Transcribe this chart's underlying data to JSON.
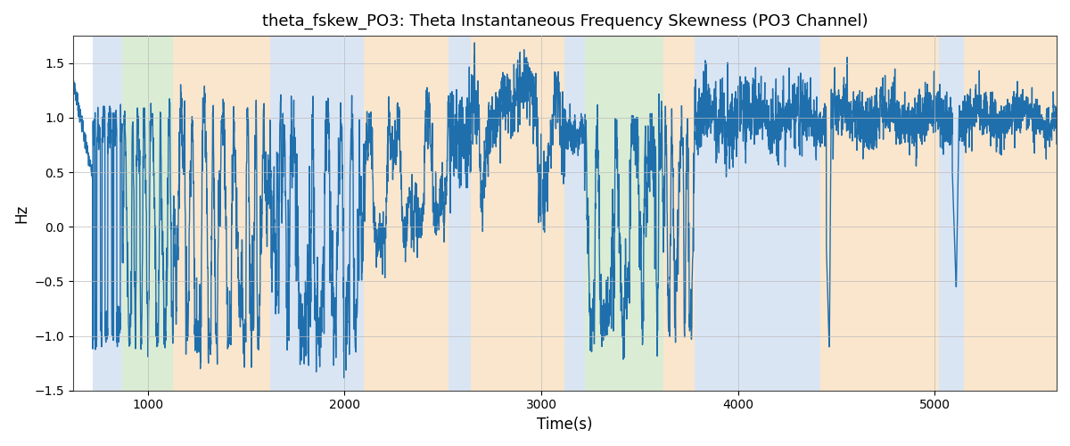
{
  "title": "theta_fskew_PO3: Theta Instantaneous Frequency Skewness (PO3 Channel)",
  "xlabel": "Time(s)",
  "ylabel": "Hz",
  "xlim": [
    620,
    5620
  ],
  "ylim": [
    -1.5,
    1.75
  ],
  "yticks": [
    -1.5,
    -1.0,
    -0.5,
    0.0,
    0.5,
    1.0,
    1.5
  ],
  "xticks": [
    1000,
    2000,
    3000,
    4000,
    5000
  ],
  "bg_bands": [
    {
      "xmin": 720,
      "xmax": 870,
      "color": "#adc6e8",
      "alpha": 0.45
    },
    {
      "xmin": 870,
      "xmax": 1130,
      "color": "#aed5a0",
      "alpha": 0.45
    },
    {
      "xmin": 1130,
      "xmax": 1620,
      "color": "#f5c990",
      "alpha": 0.45
    },
    {
      "xmin": 1620,
      "xmax": 1820,
      "color": "#adc6e8",
      "alpha": 0.45
    },
    {
      "xmin": 1820,
      "xmax": 2100,
      "color": "#adc6e8",
      "alpha": 0.45
    },
    {
      "xmin": 2100,
      "xmax": 2530,
      "color": "#f5c990",
      "alpha": 0.45
    },
    {
      "xmin": 2530,
      "xmax": 2640,
      "color": "#adc6e8",
      "alpha": 0.45
    },
    {
      "xmin": 2640,
      "xmax": 3120,
      "color": "#f5c990",
      "alpha": 0.45
    },
    {
      "xmin": 3120,
      "xmax": 3220,
      "color": "#adc6e8",
      "alpha": 0.45
    },
    {
      "xmin": 3220,
      "xmax": 3620,
      "color": "#aed5a0",
      "alpha": 0.45
    },
    {
      "xmin": 3620,
      "xmax": 3780,
      "color": "#f5c990",
      "alpha": 0.45
    },
    {
      "xmin": 3780,
      "xmax": 4420,
      "color": "#adc6e8",
      "alpha": 0.45
    },
    {
      "xmin": 4420,
      "xmax": 5020,
      "color": "#f5c990",
      "alpha": 0.45
    },
    {
      "xmin": 5020,
      "xmax": 5150,
      "color": "#adc6e8",
      "alpha": 0.45
    },
    {
      "xmin": 5150,
      "xmax": 5620,
      "color": "#f5c990",
      "alpha": 0.45
    }
  ],
  "line_color": "#1f6fad",
  "line_width": 1.0,
  "grid_color": "#bbbbbb",
  "bg_color": "#ffffff",
  "seed": 7
}
